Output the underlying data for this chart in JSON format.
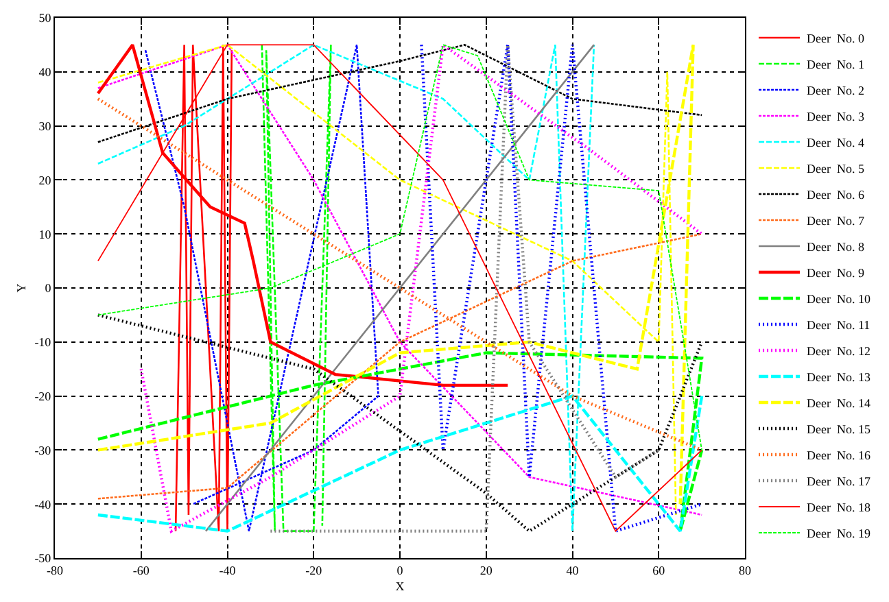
{
  "chart_data": {
    "type": "line",
    "xlabel": "X",
    "ylabel": "Y",
    "xlim": [
      -80,
      80
    ],
    "ylim": [
      -50,
      50
    ],
    "xticks": [
      -80,
      -60,
      -40,
      -20,
      0,
      20,
      40,
      60,
      80
    ],
    "yticks": [
      -50,
      -40,
      -30,
      -20,
      -10,
      0,
      10,
      20,
      30,
      40,
      50
    ],
    "grid": true,
    "legend": "top right",
    "marker": "none",
    "series": [
      {
        "name": "Deer  No. 0",
        "color": "#ff0000",
        "line_style": "solid",
        "x": [
          -52,
          -50,
          -49,
          -48,
          -42,
          -41,
          -40,
          -39,
          -40
        ],
        "values": [
          -45,
          45,
          -42,
          45,
          -45,
          45,
          -45,
          44,
          -42
        ]
      },
      {
        "name": "Deer  No. 1",
        "color": "#00ff00",
        "line_style": "dashed",
        "x": [
          -32,
          -29,
          -31,
          -27,
          -20,
          -16,
          -18
        ],
        "values": [
          45,
          -45,
          44,
          -45,
          -45,
          45,
          -44
        ]
      },
      {
        "name": "Deer  No. 2",
        "color": "#0000ff",
        "line_style": "dotted",
        "x": [
          -59,
          -50,
          -35,
          -10,
          -5,
          -20,
          -48
        ],
        "values": [
          44,
          15,
          -45,
          45,
          -20,
          -30,
          -40
        ]
      },
      {
        "name": "Deer  No. 3",
        "color": "#ff00ff",
        "line_style": "dotted",
        "x": [
          -70,
          -40,
          -20,
          0,
          30,
          70
        ],
        "values": [
          37,
          45,
          20,
          -10,
          -35,
          -42
        ]
      },
      {
        "name": "Deer  No. 4",
        "color": "#00ffff",
        "line_style": "dashed",
        "x": [
          -70,
          -50,
          -20,
          10,
          30,
          36,
          40,
          45
        ],
        "values": [
          23,
          30,
          45,
          35,
          20,
          45,
          -45,
          45
        ]
      },
      {
        "name": "Deer  No. 5",
        "color": "#ffff00",
        "line_style": "dashed",
        "x": [
          -70,
          -40,
          0,
          40,
          60,
          62,
          64
        ],
        "values": [
          38,
          45,
          20,
          5,
          -10,
          40,
          -42
        ]
      },
      {
        "name": "Deer  No. 6",
        "color": "#000000",
        "line_style": "dotted",
        "x": [
          -70,
          -40,
          0,
          15,
          40,
          70
        ],
        "values": [
          27,
          35,
          42,
          45,
          35,
          32
        ]
      },
      {
        "name": "Deer  No. 7",
        "color": "#ff6a1a",
        "line_style": "dotted",
        "x": [
          -70,
          -40,
          0,
          40,
          70
        ],
        "values": [
          -39,
          -37,
          -10,
          5,
          10
        ]
      },
      {
        "name": "Deer  No. 8",
        "color": "#808080",
        "line_style": "solid",
        "x": [
          -45,
          45
        ],
        "values": [
          -45,
          45
        ]
      },
      {
        "name": "Deer  No. 9",
        "color": "#ff0000",
        "line_style": "solid",
        "x": [
          -70,
          -62,
          -55,
          -44,
          -36,
          -34,
          -30,
          -15,
          10,
          25
        ],
        "values": [
          36,
          45,
          25,
          15,
          12,
          5,
          -10,
          -16,
          -18,
          -18
        ]
      },
      {
        "name": "Deer  No. 10",
        "color": "#00ff00",
        "line_style": "dashed",
        "x": [
          -70,
          -20,
          20,
          70,
          65,
          70
        ],
        "values": [
          -28,
          -18,
          -12,
          -13,
          -45,
          -30
        ]
      },
      {
        "name": "Deer  No. 11",
        "color": "#0000ff",
        "line_style": "dotted",
        "x": [
          5,
          10,
          25,
          30,
          40,
          50,
          70
        ],
        "values": [
          45,
          -30,
          45,
          -35,
          45,
          -45,
          -40
        ]
      },
      {
        "name": "Deer  No. 12",
        "color": "#ff00ff",
        "line_style": "dotted",
        "x": [
          -60,
          -53,
          -30,
          0,
          10,
          45,
          70
        ],
        "values": [
          -15,
          -45,
          -35,
          -20,
          45,
          25,
          10
        ]
      },
      {
        "name": "Deer  No. 13",
        "color": "#00ffff",
        "line_style": "dashed",
        "x": [
          -70,
          -40,
          0,
          40,
          60,
          65,
          70
        ],
        "values": [
          -42,
          -45,
          -30,
          -20,
          -40,
          -45,
          -20
        ]
      },
      {
        "name": "Deer  No. 14",
        "color": "#ffff00",
        "line_style": "dashed",
        "x": [
          -70,
          -30,
          0,
          30,
          55,
          68,
          65
        ],
        "values": [
          -30,
          -25,
          -12,
          -10,
          -15,
          45,
          -40
        ]
      },
      {
        "name": "Deer  No. 15",
        "color": "#000000",
        "line_style": "dotted",
        "x": [
          -70,
          -20,
          20,
          30,
          40,
          60,
          70
        ],
        "values": [
          -5,
          -15,
          -38,
          -45,
          -40,
          -30,
          -10
        ]
      },
      {
        "name": "Deer  No. 16",
        "color": "#ff6a1a",
        "line_style": "dotted",
        "x": [
          -70,
          -40,
          0,
          40,
          70
        ],
        "values": [
          35,
          20,
          0,
          -20,
          -30
        ]
      },
      {
        "name": "Deer  No. 17",
        "color": "#808080",
        "line_style": "dotted",
        "x": [
          -30,
          20,
          25,
          30,
          50,
          60
        ],
        "values": [
          -45,
          -45,
          45,
          -10,
          -35,
          -30
        ]
      },
      {
        "name": "Deer  No. 18",
        "color": "#ff0000",
        "line_style": "solid",
        "x": [
          -70,
          -40,
          -20,
          10,
          50,
          70
        ],
        "values": [
          5,
          45,
          45,
          20,
          -45,
          -30
        ]
      },
      {
        "name": "Deer  No. 19",
        "color": "#00ff00",
        "line_style": "dashed",
        "x": [
          -70,
          -30,
          0,
          10,
          18,
          30,
          60,
          70
        ],
        "values": [
          -5,
          0,
          10,
          45,
          43,
          20,
          18,
          -30
        ]
      }
    ]
  }
}
